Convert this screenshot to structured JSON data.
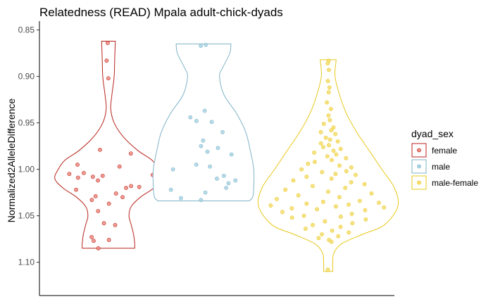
{
  "chart_data": {
    "type": "violin",
    "title": "Relatedness (READ) Mpala adult-chick-dyads",
    "xlabel": "",
    "ylabel": "Normalized2AlleleDifference",
    "ylim": [
      0.845,
      1.12
    ],
    "y_reversed": true,
    "y_ticks": [
      0.85,
      0.9,
      0.95,
      1.0,
      1.05,
      1.1
    ],
    "y_tick_labels": [
      "0.85",
      "0.90",
      "0.95",
      "1.00",
      "1.05",
      "1.10"
    ],
    "grid": false,
    "legend": {
      "title": "dyad_sex",
      "position": "right"
    },
    "series": [
      {
        "name": "female",
        "color": "#B8241C",
        "fill": "#ffffff",
        "point_fill": "#EE8A80",
        "x_center": 1,
        "density": [
          [
            0.862,
            0.06
          ],
          [
            0.88,
            0.055
          ],
          [
            0.9,
            0.05
          ],
          [
            0.92,
            0.03
          ],
          [
            0.935,
            0.02
          ],
          [
            0.95,
            0.05
          ],
          [
            0.965,
            0.13
          ],
          [
            0.98,
            0.26
          ],
          [
            0.99,
            0.38
          ],
          [
            1.0,
            0.44
          ],
          [
            1.01,
            0.47
          ],
          [
            1.02,
            0.4
          ],
          [
            1.03,
            0.28
          ],
          [
            1.04,
            0.2
          ],
          [
            1.05,
            0.18
          ],
          [
            1.06,
            0.2
          ],
          [
            1.07,
            0.22
          ],
          [
            1.08,
            0.23
          ],
          [
            1.085,
            0.23
          ]
        ],
        "values": [
          0.864,
          0.883,
          0.902,
          0.979,
          0.983,
          0.995,
          0.997,
          1.004,
          1.005,
          1.006,
          1.007,
          1.008,
          1.009,
          1.012,
          1.018,
          1.019,
          1.02,
          1.022,
          1.026,
          1.029,
          1.03,
          1.033,
          1.037,
          1.045,
          1.058,
          1.06,
          1.073,
          1.076,
          1.077,
          1.085
        ],
        "jitter": [
          -0.12,
          -0.32,
          -0.02,
          -0.32,
          0.72,
          -0.72,
          0.25,
          -0.52,
          -0.82,
          0.92,
          -0.12,
          -0.32,
          -0.62,
          -0.22,
          0.52,
          0.72,
          0.42,
          -0.82,
          0.22,
          -0.42,
          0.48,
          -0.62,
          0.02,
          -0.52,
          -0.22,
          0.32,
          -0.72,
          0.02,
          -0.62,
          -0.42
        ]
      },
      {
        "name": "male",
        "color": "#7FB3C8",
        "fill": "#ffffff",
        "point_fill": "#A9D5E4",
        "x_center": 2,
        "density": [
          [
            0.865,
            0.24
          ],
          [
            0.875,
            0.23
          ],
          [
            0.89,
            0.17
          ],
          [
            0.9,
            0.14
          ],
          [
            0.92,
            0.18
          ],
          [
            0.94,
            0.29
          ],
          [
            0.96,
            0.37
          ],
          [
            0.98,
            0.41
          ],
          [
            1.0,
            0.44
          ],
          [
            1.02,
            0.44
          ],
          [
            1.03,
            0.43
          ],
          [
            1.034,
            0.4
          ]
        ],
        "values": [
          0.866,
          0.867,
          0.937,
          0.944,
          0.948,
          0.949,
          0.96,
          0.969,
          0.975,
          0.977,
          0.981,
          0.984,
          0.995,
          0.997,
          1.0,
          1.007,
          1.01,
          1.012,
          1.015,
          1.02,
          1.022,
          1.025,
          1.031,
          1.033
        ],
        "jitter": [
          0.09,
          -0.11,
          0.04,
          -0.41,
          -0.21,
          0.24,
          0.49,
          -0.01,
          -0.06,
          0.34,
          0.09,
          0.64,
          -0.16,
          0.14,
          -0.66,
          0.44,
          0.29,
          0.69,
          0.54,
          0.49,
          -0.71,
          0.04,
          -0.51,
          -0.06
        ]
      },
      {
        "name": "male-female",
        "color": "#E8C81A",
        "fill": "#ffffff",
        "point_fill": "#F5DD72",
        "x_center": 3,
        "density": [
          [
            0.882,
            0.07
          ],
          [
            0.9,
            0.06
          ],
          [
            0.92,
            0.1
          ],
          [
            0.94,
            0.16
          ],
          [
            0.96,
            0.25
          ],
          [
            0.98,
            0.36
          ],
          [
            1.0,
            0.47
          ],
          [
            1.02,
            0.58
          ],
          [
            1.04,
            0.61
          ],
          [
            1.06,
            0.49
          ],
          [
            1.07,
            0.3
          ],
          [
            1.08,
            0.12
          ],
          [
            1.09,
            0.05
          ],
          [
            1.1,
            0.04
          ],
          [
            1.11,
            0.04
          ]
        ],
        "values": [
          0.883,
          0.886,
          0.893,
          0.905,
          0.912,
          0.917,
          0.928,
          0.935,
          0.942,
          0.947,
          0.951,
          0.955,
          0.958,
          0.96,
          0.962,
          0.966,
          0.968,
          0.97,
          0.972,
          0.974,
          0.976,
          0.978,
          0.98,
          0.982,
          0.984,
          0.986,
          0.988,
          0.99,
          0.992,
          0.994,
          0.996,
          0.998,
          1.0,
          1.002,
          1.003,
          1.005,
          1.006,
          1.008,
          1.01,
          1.012,
          1.014,
          1.016,
          1.018,
          1.02,
          1.022,
          1.024,
          1.026,
          1.028,
          1.03,
          1.032,
          1.034,
          1.035,
          1.036,
          1.037,
          1.038,
          1.039,
          1.04,
          1.041,
          1.042,
          1.043,
          1.044,
          1.046,
          1.048,
          1.05,
          1.051,
          1.052,
          1.054,
          1.056,
          1.058,
          1.06,
          1.062,
          1.064,
          1.066,
          1.068,
          1.07,
          1.072,
          1.074,
          1.076,
          1.078,
          1.108
        ],
        "jitter": [
          0.06,
          -0.08,
          0.1,
          -0.04,
          0.14,
          0.05,
          -0.1,
          0.18,
          0.02,
          0.08,
          -0.2,
          0.22,
          0.12,
          -0.28,
          0.26,
          -0.08,
          0.06,
          0.3,
          -0.22,
          0.02,
          -0.14,
          0.34,
          0.14,
          -0.36,
          0.2,
          -0.02,
          0.42,
          0.08,
          -0.3,
          -0.44,
          0.24,
          0.48,
          -0.54,
          0.36,
          -0.12,
          0.14,
          0.52,
          -0.4,
          0.06,
          -0.62,
          0.4,
          0.62,
          -0.26,
          0.28,
          -0.7,
          0.0,
          0.7,
          -0.48,
          0.18,
          -0.82,
          0.5,
          -0.08,
          0.8,
          -0.34,
          0.32,
          -0.9,
          0.12,
          0.88,
          -0.58,
          -0.18,
          0.6,
          -0.76,
          0.4,
          -0.42,
          0.22,
          -0.64,
          0.68,
          -0.06,
          0.46,
          -0.3,
          0.26,
          -0.52,
          0.1,
          0.58,
          -0.2,
          0.36,
          -0.4,
          0.04,
          0.2,
          -0.08
        ]
      }
    ]
  }
}
